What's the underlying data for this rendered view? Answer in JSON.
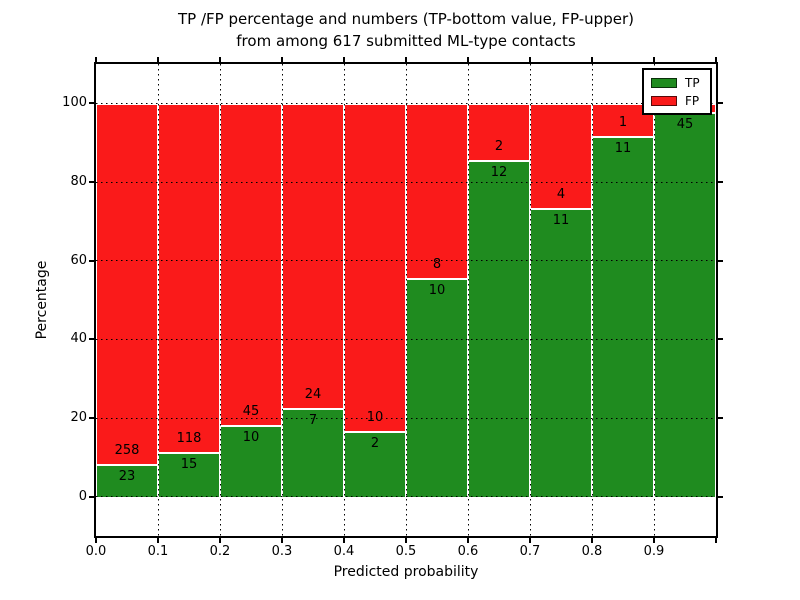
{
  "chart_data": {
    "type": "bar",
    "variant": "stacked-percentage-histogram",
    "title_line1": "TP /FP percentage and numbers (TP-bottom value, FP-upper)",
    "title_line2": "from among 617 submitted ML-type contacts",
    "xlabel": "Predicted probability",
    "ylabel": "Percentage",
    "total_contacts": 617,
    "xlim": [
      0.0,
      1.0
    ],
    "ylim": [
      -10,
      110
    ],
    "bin_width": 0.1,
    "x_ticks": [
      "0.0",
      "0.1",
      "0.2",
      "0.3",
      "0.4",
      "0.5",
      "0.6",
      "0.7",
      "0.8",
      "0.9"
    ],
    "y_ticks": [
      0,
      20,
      40,
      60,
      80,
      100
    ],
    "grid": "dotted",
    "legend_position": "upper-right",
    "colors": {
      "tp": "#1f8b1f",
      "fp": "#fa1a1a",
      "frame": "#000000",
      "background": "#ffffff"
    },
    "legend": [
      {
        "label": "TP",
        "color": "#1f8b1f"
      },
      {
        "label": "FP",
        "color": "#fa1a1a"
      }
    ],
    "bins": [
      {
        "range": "0.0-0.1",
        "tp_label": "23",
        "fp_label": "258",
        "tp_pct": 8.2
      },
      {
        "range": "0.1-0.2",
        "tp_label": "15",
        "fp_label": "118",
        "tp_pct": 11.3
      },
      {
        "range": "0.2-0.3",
        "tp_label": "10",
        "fp_label": "45",
        "tp_pct": 18.2
      },
      {
        "range": "0.3-0.4",
        "tp_label": "7",
        "fp_label": "24",
        "tp_pct": 22.6
      },
      {
        "range": "0.4-0.5",
        "tp_label": "2",
        "fp_label": "10",
        "tp_pct": 16.7
      },
      {
        "range": "0.5-0.6",
        "tp_label": "10",
        "fp_label": "8",
        "tp_pct": 55.6
      },
      {
        "range": "0.6-0.7",
        "tp_label": "12",
        "fp_label": "2",
        "tp_pct": 85.7
      },
      {
        "range": "0.7-0.8",
        "tp_label": "11",
        "fp_label": "4",
        "tp_pct": 73.3
      },
      {
        "range": "0.8-0.9",
        "tp_label": "11",
        "fp_label": "1",
        "tp_pct": 91.7
      },
      {
        "range": "0.9-1.0",
        "tp_label": "45",
        "fp_label": "",
        "tp_pct": 97.8
      }
    ]
  }
}
